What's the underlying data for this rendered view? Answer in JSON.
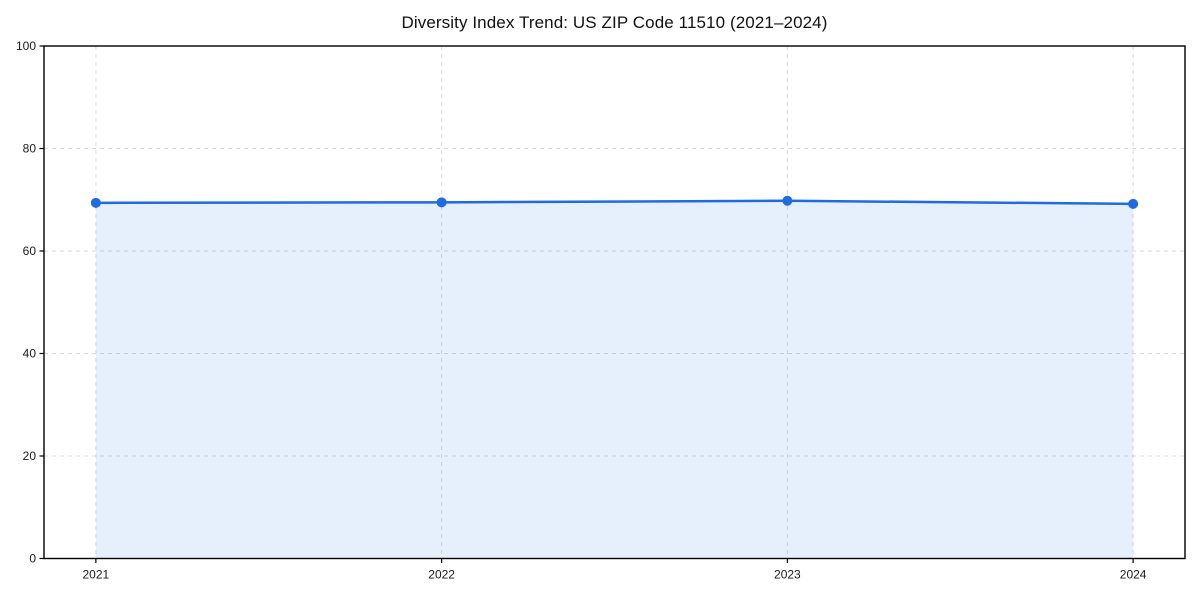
{
  "figure": {
    "title": "Diversity Index Trend: US ZIP Code 11510 (2021–2024)"
  },
  "chart_data": {
    "type": "area",
    "title": "Diversity Index Trend: US ZIP Code 11510 (2021–2024)",
    "categories": [
      "2021",
      "2022",
      "2023",
      "2024"
    ],
    "series": [
      {
        "name": "Diversity Index",
        "values": [
          69.4,
          69.5,
          69.8,
          69.2
        ]
      }
    ],
    "xlabel": "",
    "ylabel": "",
    "ylim": [
      0,
      100
    ],
    "yticks": [
      0,
      20,
      40,
      60,
      80,
      100
    ],
    "grid": true,
    "grid_style": "dashed",
    "legend_position": "none",
    "marker": "circle",
    "colors": {
      "line": "#1f6be0",
      "area_fill_effective": "#e8effc",
      "fill_opacity": 0.11,
      "grid": "#d9d9d9",
      "axis": "#000000",
      "tick_text": "#1a1a1a",
      "background": "#ffffff"
    }
  }
}
